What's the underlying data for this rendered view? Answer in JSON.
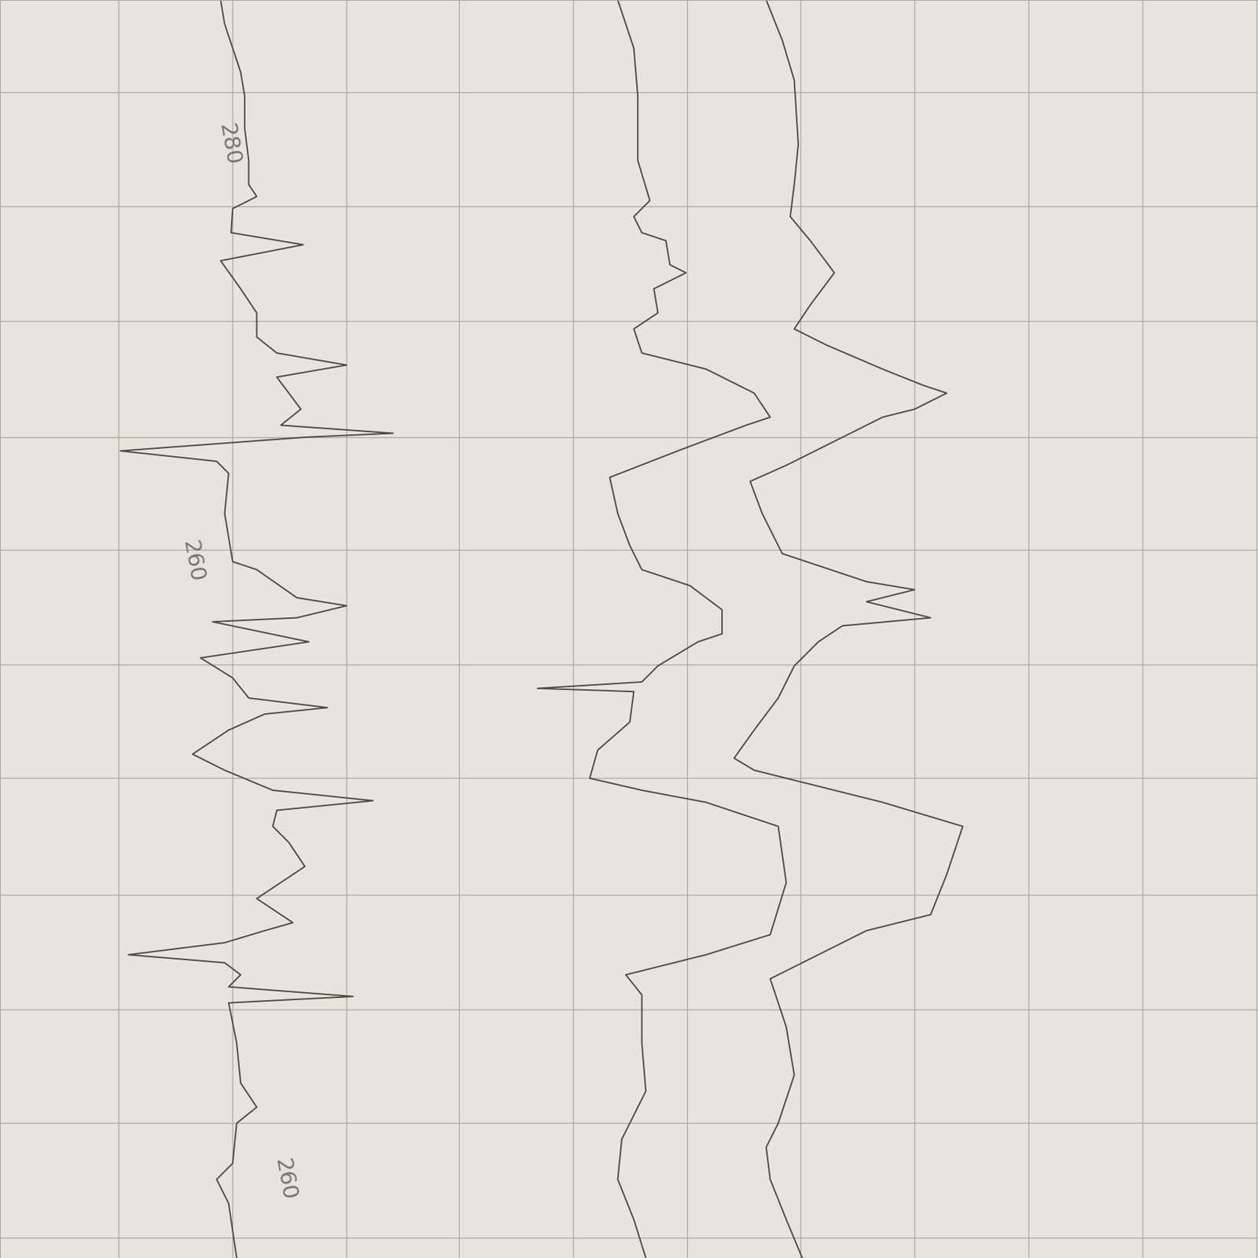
{
  "chart_data": {
    "type": "line",
    "grid": true,
    "tick_labels": false,
    "xlim": [
      0,
      1568
    ],
    "ylim": [
      1568,
      0
    ],
    "xticks": [
      148,
      290,
      432,
      572,
      714,
      856,
      998,
      1140,
      1282,
      1424,
      1566
    ],
    "yticks": [
      115,
      257,
      400,
      545,
      685,
      828,
      970,
      1115,
      1258,
      1400,
      1543
    ],
    "color": "#4a4a4a",
    "series": [
      {
        "x": [
          275,
          280,
          290,
          300,
          305,
          305,
          310,
          310,
          320,
          290,
          288,
          378,
          275,
          300,
          320,
          320,
          345,
          432,
          345,
          375,
          350,
          490,
          380,
          150,
          270,
          285,
          280,
          290,
          320,
          370,
          432,
          370,
          265,
          385,
          250,
          290,
          310,
          408,
          330,
          285,
          240,
          280,
          340,
          465,
          345,
          340,
          360,
          380,
          350,
          320,
          365,
          330,
          280,
          160,
          280,
          300,
          285,
          440,
          285,
          295,
          300,
          320,
          295,
          290,
          270,
          285,
          295
        ],
        "y": [
          0,
          30,
          60,
          90,
          120,
          160,
          200,
          230,
          245,
          260,
          290,
          305,
          325,
          360,
          390,
          420,
          440,
          455,
          470,
          510,
          530,
          540,
          545,
          562,
          575,
          590,
          640,
          700,
          710,
          745,
          755,
          770,
          775,
          800,
          820,
          845,
          870,
          882,
          890,
          910,
          940,
          960,
          985,
          998,
          1010,
          1030,
          1050,
          1080,
          1100,
          1120,
          1150,
          1160,
          1175,
          1190,
          1200,
          1215,
          1230,
          1242,
          1250,
          1300,
          1350,
          1380,
          1400,
          1450,
          1470,
          1500,
          1568
        ]
      },
      {
        "x": [
          770,
          790,
          795,
          795,
          810,
          790,
          800,
          830,
          835,
          855,
          815,
          820,
          790,
          800,
          880,
          940,
          960,
          930,
          850,
          760,
          770,
          785,
          800,
          860,
          900,
          900,
          870,
          820,
          800,
          670,
          790,
          785,
          745,
          735,
          800,
          880,
          970,
          980,
          960,
          880,
          780,
          800,
          800,
          805,
          775,
          770,
          790,
          805
        ],
        "y": [
          0,
          60,
          120,
          200,
          250,
          270,
          290,
          300,
          330,
          340,
          360,
          390,
          410,
          440,
          460,
          490,
          520,
          530,
          560,
          595,
          640,
          680,
          710,
          730,
          760,
          790,
          800,
          830,
          850,
          858,
          862,
          900,
          935,
          970,
          985,
          1000,
          1030,
          1100,
          1165,
          1190,
          1215,
          1240,
          1300,
          1360,
          1420,
          1470,
          1520,
          1568
        ]
      },
      {
        "x": [
          955,
          975,
          990,
          995,
          990,
          985,
          1010,
          1040,
          1010,
          990,
          1030,
          1100,
          1150,
          1180,
          1140,
          1100,
          1040,
          980,
          935,
          950,
          975,
          1020,
          1080,
          1140,
          1080,
          1160,
          1050,
          1020,
          990,
          970,
          940,
          915,
          940,
          1000,
          1100,
          1200,
          1180,
          1160,
          1080,
          1040,
          960,
          980,
          990,
          970,
          955,
          960,
          980,
          1000
        ],
        "y": [
          0,
          50,
          100,
          180,
          230,
          270,
          300,
          340,
          380,
          410,
          430,
          460,
          480,
          490,
          510,
          520,
          550,
          580,
          600,
          640,
          690,
          705,
          725,
          735,
          750,
          770,
          780,
          800,
          830,
          870,
          910,
          945,
          960,
          975,
          1000,
          1030,
          1090,
          1140,
          1160,
          1180,
          1220,
          1280,
          1340,
          1400,
          1430,
          1470,
          1520,
          1568
        ]
      }
    ],
    "annotations": [
      {
        "text": "280",
        "x": 285,
        "y": 180
      },
      {
        "text": "260",
        "x": 240,
        "y": 700
      },
      {
        "text": "260",
        "x": 355,
        "y": 1470
      }
    ]
  }
}
